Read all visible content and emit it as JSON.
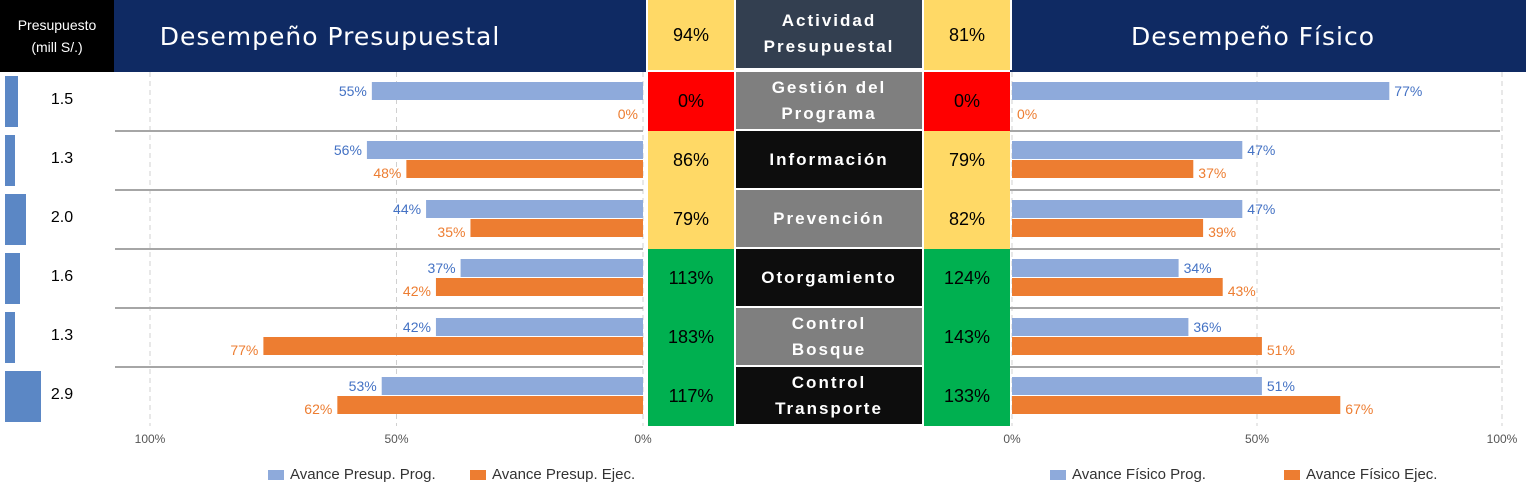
{
  "header": {
    "budget_title": "Presupuesto",
    "budget_unit": "(mill S/.)",
    "left_title": "Desempeño Presupuestal",
    "center_title": "Actividad Presupuestal",
    "right_title": "Desempeño Físico",
    "left_summary": "94%",
    "right_summary": "81%"
  },
  "colors": {
    "navy": "#0f2a63",
    "prog": "#8eaadb",
    "ejec": "#ed7d31",
    "prog_label": "#4472c4",
    "ejec_label": "#ed7d31",
    "yellow": "#ffd966",
    "red": "#ff0000",
    "green": "#00b050",
    "gray": "#7f7f7f",
    "black": "#0d0d0d",
    "budget_bar": "#5b87c5"
  },
  "rows": [
    {
      "activity": "Gestión del Programa",
      "budget": "1.5",
      "budget_value": 1.5,
      "left_pct": "0%",
      "right_pct": "0%",
      "left_color": "red",
      "right_color": "red",
      "act_color": "gray"
    },
    {
      "activity": "Información",
      "budget": "1.3",
      "budget_value": 1.3,
      "left_pct": "86%",
      "right_pct": "79%",
      "left_color": "yellow",
      "right_color": "yellow",
      "act_color": "black"
    },
    {
      "activity": "Prevención",
      "budget": "2.0",
      "budget_value": 2.0,
      "left_pct": "79%",
      "right_pct": "82%",
      "left_color": "yellow",
      "right_color": "yellow",
      "act_color": "gray"
    },
    {
      "activity": "Otorgamiento",
      "budget": "1.6",
      "budget_value": 1.6,
      "left_pct": "113%",
      "right_pct": "124%",
      "left_color": "green",
      "right_color": "green",
      "act_color": "black"
    },
    {
      "activity": "Control Bosque",
      "budget": "1.3",
      "budget_value": 1.3,
      "left_pct": "183%",
      "right_pct": "143%",
      "left_color": "green",
      "right_color": "green",
      "act_color": "gray"
    },
    {
      "activity": "Control Transporte",
      "budget": "2.9",
      "budget_value": 2.9,
      "left_pct": "117%",
      "right_pct": "133%",
      "left_color": "green",
      "right_color": "green",
      "act_color": "black"
    }
  ],
  "chart_data": [
    {
      "type": "bar",
      "orientation": "horizontal",
      "categories": [
        "Gestión del Programa",
        "Información",
        "Prevención",
        "Otorgamiento",
        "Control Bosque",
        "Control Transporte"
      ],
      "series": [
        {
          "name": "Avance Presup. Prog.",
          "values": [
            55,
            56,
            44,
            37,
            42,
            53
          ],
          "labels": [
            "55%",
            "56%",
            "44%",
            "37%",
            "42%",
            "53%"
          ]
        },
        {
          "name": "Avance Presup. Ejec.",
          "values": [
            0,
            48,
            35,
            42,
            77,
            62
          ],
          "labels": [
            "0%",
            "48%",
            "35%",
            "42%",
            "77%",
            "62%"
          ]
        }
      ],
      "xlim": [
        0,
        100
      ],
      "reversed": true,
      "ticks": [
        "100%",
        "50%",
        "0%"
      ],
      "grid": true
    },
    {
      "type": "bar",
      "orientation": "horizontal",
      "categories": [
        "Gestión del Programa",
        "Información",
        "Prevención",
        "Otorgamiento",
        "Control Bosque",
        "Control Transporte"
      ],
      "series": [
        {
          "name": "Avance Físico Prog.",
          "values": [
            77,
            47,
            47,
            34,
            36,
            51
          ],
          "labels": [
            "77%",
            "47%",
            "47%",
            "34%",
            "36%",
            "51%"
          ]
        },
        {
          "name": "Avance Físico Ejec.",
          "values": [
            0,
            37,
            39,
            43,
            51,
            67
          ],
          "labels": [
            "0%",
            "37%",
            "39%",
            "43%",
            "51%",
            "67%"
          ]
        }
      ],
      "xlim": [
        0,
        100
      ],
      "reversed": false,
      "ticks": [
        "0%",
        "50%",
        "100%"
      ],
      "grid": true
    }
  ]
}
